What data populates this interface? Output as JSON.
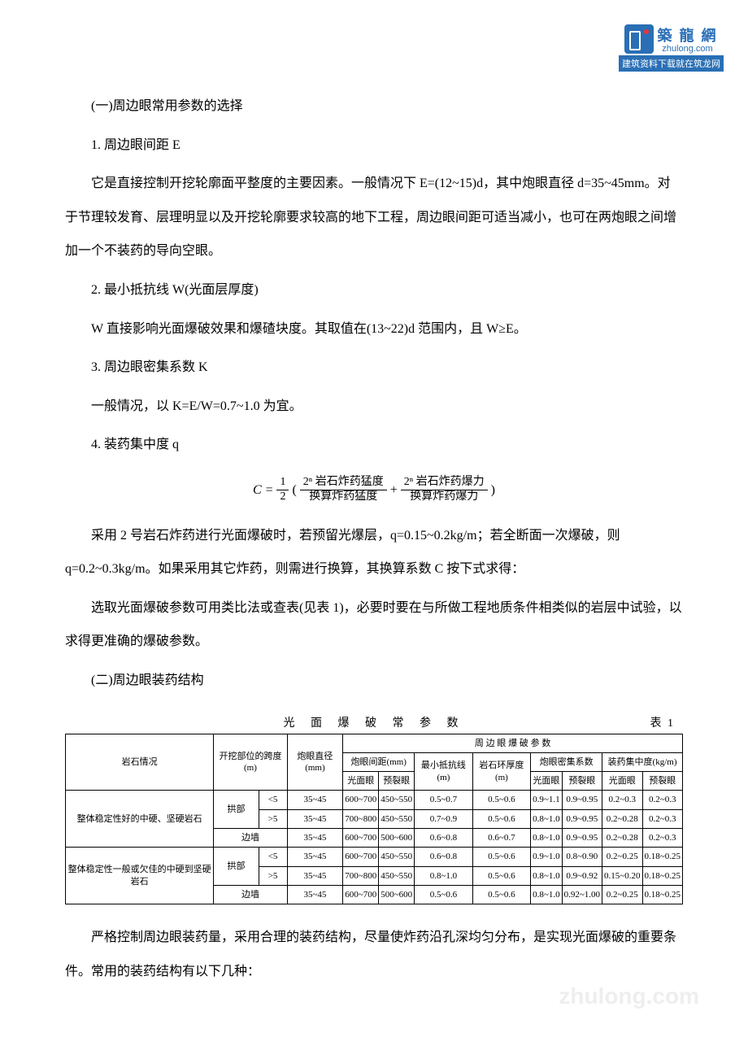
{
  "logo": {
    "cn": "築 龍 網",
    "en": "zhulong.com",
    "bar": "建筑资料下载就在筑龙网"
  },
  "sections": {
    "s1_title": "(一)周边眼常用参数的选择",
    "p1_title": "1. 周边眼间距 E",
    "p1_body": "它是直接控制开挖轮廓面平整度的主要因素。一般情况下 E=(12~15)d，其中炮眼直径 d=35~45mm。对于节理较发育、层理明显以及开挖轮廓要求较高的地下工程，周边眼间距可适当减小，也可在两炮眼之间增加一个不装药的导向空眼。",
    "p2_title": "2. 最小抵抗线 W(光面层厚度)",
    "p2_body": "W 直接影响光面爆破效果和爆碴块度。其取值在(13~22)d 范围内，且 W≥E。",
    "p3_title": "3. 周边眼密集系数 K",
    "p3_body": "一般情况，以 K=E/W=0.7~1.0 为宜。",
    "p4_title": "4. 装药集中度 q",
    "formula": {
      "left": "C = ",
      "half_num": "1",
      "half_den": "2",
      "f1_num": "2ⁿ 岩石炸药猛度",
      "f1_den": "换算炸药猛度",
      "plus": " + ",
      "f2_num": "2ⁿ 岩石炸药爆力",
      "f2_den": "换算炸药爆力",
      "lparen": "(",
      "rparen": ")"
    },
    "p4_body1": "采用 2 号岩石炸药进行光面爆破时，若预留光爆层，q=0.15~0.2kg/m；若全断面一次爆破，则 q=0.2~0.3kg/m。如果采用其它炸药，则需进行换算，其换算系数 C 按下式求得：",
    "p4_body2": "选取光面爆破参数可用类比法或查表(见表 1)，必要时要在与所做工程地质条件相类似的岩层中试验，以求得更准确的爆破参数。",
    "s2_title": "(二)周边眼装药结构",
    "s2_body": "严格控制周边眼装药量，采用合理的装药结构，尽量使炸药沿孔深均匀分布，是实现光面爆破的重要条件。常用的装药结构有以下几种："
  },
  "table": {
    "title": "光 面 爆 破 常 参 数",
    "label": "表 1",
    "header": {
      "rock": "岩石情况",
      "span": "开挖部位的跨度(m)",
      "diam": "炮眼直径(mm)",
      "top": "周  边  眼  爆  破  参  数",
      "spacing": "炮眼间距(mm)",
      "spacing_l": "光面眼",
      "spacing_r": "预裂眼",
      "resist": "最小抵抗线(m)",
      "ring": "岩石环厚度(m)",
      "dense": "炮眼密集系数",
      "dense_l": "光面眼",
      "dense_r": "预裂眼",
      "charge": "装药集中度(kg/m)",
      "charge_l": "光面眼",
      "charge_r": "预裂眼"
    },
    "rows": [
      {
        "rock": "整体稳定性好的中硬、坚硬岩石",
        "pos": "拱部",
        "span": "<5",
        "diam": "35~45",
        "sp_l": "600~700",
        "sp_r": "450~550",
        "res": "0.5~0.7",
        "ring": "0.5~0.6",
        "dn_l": "0.9~1.1",
        "dn_r": "0.9~0.95",
        "ch_l": "0.2~0.3",
        "ch_r": "0.2~0.3"
      },
      {
        "rock": "",
        "pos": "",
        "span": ">5",
        "diam": "35~45",
        "sp_l": "700~800",
        "sp_r": "450~550",
        "res": "0.7~0.9",
        "ring": "0.5~0.6",
        "dn_l": "0.8~1.0",
        "dn_r": "0.9~0.95",
        "ch_l": "0.2~0.28",
        "ch_r": "0.2~0.3"
      },
      {
        "rock": "",
        "pos": "边墙",
        "span": "",
        "diam": "35~45",
        "sp_l": "600~700",
        "sp_r": "500~600",
        "res": "0.6~0.8",
        "ring": "0.6~0.7",
        "dn_l": "0.8~1.0",
        "dn_r": "0.9~0.95",
        "ch_l": "0.2~0.28",
        "ch_r": "0.2~0.3"
      },
      {
        "rock": "整体稳定性一般或欠佳的中硬到坚硬岩石",
        "pos": "拱部",
        "span": "<5",
        "diam": "35~45",
        "sp_l": "600~700",
        "sp_r": "450~550",
        "res": "0.6~0.8",
        "ring": "0.5~0.6",
        "dn_l": "0.9~1.0",
        "dn_r": "0.8~0.90",
        "ch_l": "0.2~0.25",
        "ch_r": "0.18~0.25"
      },
      {
        "rock": "",
        "pos": "",
        "span": ">5",
        "diam": "35~45",
        "sp_l": "700~800",
        "sp_r": "450~550",
        "res": "0.8~1.0",
        "ring": "0.5~0.6",
        "dn_l": "0.8~1.0",
        "dn_r": "0.9~0.92",
        "ch_l": "0.15~0.20",
        "ch_r": "0.18~0.25"
      },
      {
        "rock": "",
        "pos": "边墙",
        "span": "",
        "diam": "35~45",
        "sp_l": "600~700",
        "sp_r": "500~600",
        "res": "0.5~0.6",
        "ring": "0.5~0.6",
        "dn_l": "0.8~1.0",
        "dn_r": "0.92~1.00",
        "ch_l": "0.2~0.25",
        "ch_r": "0.18~0.25"
      }
    ]
  },
  "watermark": "zhulong.com"
}
